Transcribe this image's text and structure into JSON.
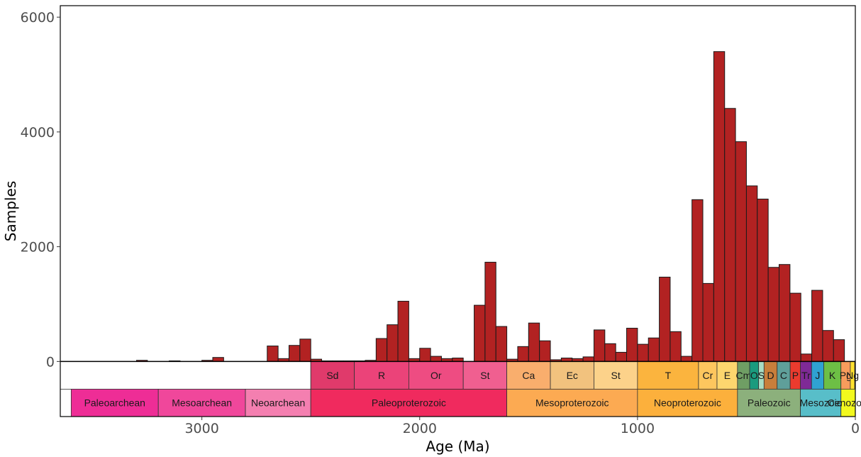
{
  "chart_data": {
    "type": "bar",
    "title": "",
    "xlabel": "Age (Ma)",
    "ylabel": "Samples",
    "xlim": [
      3650,
      0
    ],
    "ylim": [
      -960,
      6200
    ],
    "x_reversed": true,
    "grid": false,
    "bin_width": 50,
    "x_ticks": [
      3000,
      2000,
      1000,
      0
    ],
    "x_tick_labels": [
      "3000",
      "2000",
      "1000",
      "0"
    ],
    "y_ticks": [
      0,
      2000,
      4000,
      6000
    ],
    "y_tick_labels": [
      "0",
      "2000",
      "4000",
      "6000"
    ],
    "bar_color": "#B22222",
    "series": [
      {
        "bin_centers": [
          3275,
          3125,
          2975,
          2925,
          2675,
          2625,
          2575,
          2525,
          2475,
          2425,
          2375,
          2325,
          2275,
          2225,
          2175,
          2125,
          2075,
          2025,
          1975,
          1925,
          1875,
          1825,
          1775,
          1725,
          1675,
          1625,
          1575,
          1525,
          1475,
          1425,
          1375,
          1325,
          1275,
          1225,
          1175,
          1125,
          1075,
          1025,
          975,
          925,
          875,
          825,
          775,
          725,
          675,
          625,
          575,
          525,
          475,
          425,
          375,
          325,
          275,
          225,
          175,
          125,
          75,
          25
        ],
        "values": [
          20,
          10,
          20,
          70,
          270,
          50,
          280,
          390,
          40,
          10,
          10,
          10,
          10,
          20,
          400,
          640,
          1050,
          50,
          230,
          90,
          50,
          60,
          0,
          980,
          1730,
          610,
          40,
          260,
          670,
          360,
          30,
          60,
          50,
          80,
          550,
          310,
          160,
          580,
          300,
          410,
          1470,
          520,
          90,
          2820,
          1360,
          5400,
          4410,
          3830,
          3060,
          2830,
          1640,
          1690,
          1190,
          130,
          1240,
          540,
          380,
          0
        ]
      }
    ],
    "timescale": {
      "periods": [
        {
          "label": "Sd",
          "from": 2500,
          "to": 2300,
          "color": "#E03A6B"
        },
        {
          "label": "R",
          "from": 2300,
          "to": 2050,
          "color": "#EB4379"
        },
        {
          "label": "Or",
          "from": 2050,
          "to": 1800,
          "color": "#EE4C82"
        },
        {
          "label": "St",
          "from": 1800,
          "to": 1600,
          "color": "#F05F90"
        },
        {
          "label": "Ca",
          "from": 1600,
          "to": 1400,
          "color": "#F9AE6D"
        },
        {
          "label": "Ec",
          "from": 1400,
          "to": 1200,
          "color": "#F2C27E"
        },
        {
          "label": "St",
          "from": 1200,
          "to": 1000,
          "color": "#FCD28A"
        },
        {
          "label": "T",
          "from": 1000,
          "to": 720,
          "color": "#FBB43E"
        },
        {
          "label": "Cr",
          "from": 720,
          "to": 635,
          "color": "#FDC65E"
        },
        {
          "label": "E",
          "from": 635,
          "to": 541,
          "color": "#FDD66E"
        },
        {
          "label": "Cm",
          "from": 541,
          "to": 485,
          "color": "#6F9E64"
        },
        {
          "label": "O",
          "from": 485,
          "to": 444,
          "color": "#1A9B7E"
        },
        {
          "label": "S",
          "from": 444,
          "to": 419,
          "color": "#A8DDC4"
        },
        {
          "label": "D",
          "from": 419,
          "to": 359,
          "color": "#C87E3B"
        },
        {
          "label": "C",
          "from": 359,
          "to": 299,
          "color": "#5F9F9A"
        },
        {
          "label": "P",
          "from": 299,
          "to": 252,
          "color": "#EB3B2E"
        },
        {
          "label": "Tr",
          "from": 252,
          "to": 201,
          "color": "#7F2A96"
        },
        {
          "label": "J",
          "from": 201,
          "to": 145,
          "color": "#2FA2D2"
        },
        {
          "label": "K",
          "from": 145,
          "to": 66,
          "color": "#6DBF45"
        },
        {
          "label": "Pg",
          "from": 66,
          "to": 23,
          "color": "#F89C5C"
        },
        {
          "label": "Ng",
          "from": 23,
          "to": 2.6,
          "color": "#FFE12F"
        },
        {
          "label": "",
          "from": 2.6,
          "to": 0,
          "color": "#FFF0A0"
        }
      ],
      "eras": [
        {
          "label": "Paleoarchean",
          "from": 3600,
          "to": 3200,
          "color": "#EE2D96"
        },
        {
          "label": "Mesoarchean",
          "from": 3200,
          "to": 2800,
          "color": "#F0479B"
        },
        {
          "label": "Neoarchean",
          "from": 2800,
          "to": 2500,
          "color": "#F47FB0"
        },
        {
          "label": "Paleoproterozoic",
          "from": 2500,
          "to": 1600,
          "color": "#F02A5E"
        },
        {
          "label": "Mesoproterozoic",
          "from": 1600,
          "to": 1000,
          "color": "#FCAA52"
        },
        {
          "label": "Neoproterozoic",
          "from": 1000,
          "to": 541,
          "color": "#FCB03C"
        },
        {
          "label": "Paleozoic",
          "from": 541,
          "to": 252,
          "color": "#8CB07C"
        },
        {
          "label": "Mesozoic",
          "from": 252,
          "to": 66,
          "color": "#58BEC9"
        },
        {
          "label": "Cenozoic",
          "from": 66,
          "to": 0,
          "color": "#F2F91E"
        }
      ]
    }
  }
}
